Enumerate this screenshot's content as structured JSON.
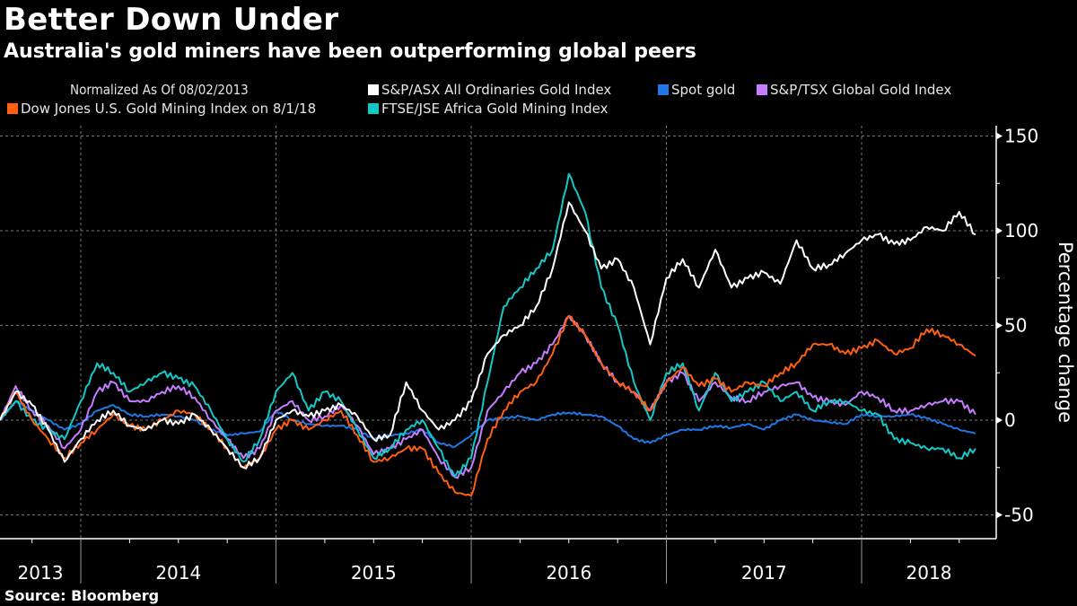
{
  "header": {
    "title": "Better Down Under",
    "subtitle": "Australia's gold miners have been outperforming global peers"
  },
  "footer": {
    "source": "Source: Bloomberg"
  },
  "chart_data": {
    "type": "line",
    "title": "Better Down Under",
    "subtitle": "Australia's gold miners have been outperforming global peers",
    "legend_note": "Normalized As Of 08/02/2013",
    "xlabel": "",
    "ylabel": "Percentage change",
    "ylim": [
      -60,
      150
    ],
    "yticks": [
      150,
      100,
      50,
      0,
      -50
    ],
    "x_tick_labels": [
      "2013",
      "2014",
      "2015",
      "2016",
      "2017",
      "2018"
    ],
    "x_range": [
      "2013-08-02",
      "2018-08-01"
    ],
    "grid": true,
    "legend_placement": "top",
    "x": [
      "2013-08",
      "2013-09",
      "2013-10",
      "2013-11",
      "2013-12",
      "2014-01",
      "2014-02",
      "2014-03",
      "2014-04",
      "2014-05",
      "2014-06",
      "2014-07",
      "2014-08",
      "2014-09",
      "2014-10",
      "2014-11",
      "2014-12",
      "2015-01",
      "2015-02",
      "2015-03",
      "2015-04",
      "2015-05",
      "2015-06",
      "2015-07",
      "2015-08",
      "2015-09",
      "2015-10",
      "2015-11",
      "2015-12",
      "2016-01",
      "2016-02",
      "2016-03",
      "2016-04",
      "2016-05",
      "2016-06",
      "2016-07",
      "2016-08",
      "2016-09",
      "2016-10",
      "2016-11",
      "2016-12",
      "2017-01",
      "2017-02",
      "2017-03",
      "2017-04",
      "2017-05",
      "2017-06",
      "2017-07",
      "2017-08",
      "2017-09",
      "2017-10",
      "2017-11",
      "2017-12",
      "2018-01",
      "2018-02",
      "2018-03",
      "2018-04",
      "2018-05",
      "2018-06",
      "2018-07",
      "2018-08"
    ],
    "series": [
      {
        "name": "S&P/ASX All Ordinaries Gold Index",
        "color": "#ffffff",
        "values": [
          0,
          15,
          8,
          -5,
          -22,
          -10,
          0,
          5,
          -3,
          -5,
          0,
          -2,
          3,
          -5,
          -15,
          -25,
          -20,
          0,
          5,
          2,
          5,
          8,
          2,
          -10,
          -8,
          20,
          5,
          -5,
          0,
          10,
          35,
          45,
          50,
          60,
          80,
          115,
          100,
          80,
          85,
          70,
          40,
          75,
          85,
          70,
          90,
          70,
          75,
          78,
          72,
          95,
          80,
          82,
          88,
          95,
          98,
          93,
          95,
          102,
          100,
          110,
          98
        ]
      },
      {
        "name": "Spot gold",
        "color": "#1f78e6",
        "values": [
          0,
          10,
          5,
          0,
          -5,
          -2,
          5,
          8,
          3,
          2,
          3,
          2,
          0,
          -5,
          -8,
          -7,
          -6,
          5,
          0,
          -2,
          -3,
          -3,
          -5,
          -10,
          -8,
          -7,
          -5,
          -12,
          -14,
          -8,
          0,
          1,
          2,
          0,
          3,
          4,
          3,
          2,
          -3,
          -10,
          -12,
          -8,
          -5,
          -5,
          -3,
          -4,
          -2,
          -5,
          0,
          3,
          0,
          -1,
          -2,
          3,
          2,
          2,
          3,
          1,
          -2,
          -5,
          -7
        ]
      },
      {
        "name": "S&P/TSX Global Gold Index",
        "color": "#c77dff",
        "values": [
          0,
          18,
          5,
          -3,
          -15,
          -5,
          15,
          20,
          10,
          10,
          15,
          18,
          12,
          0,
          -10,
          -20,
          -15,
          5,
          10,
          0,
          2,
          8,
          -3,
          -18,
          -15,
          -10,
          -5,
          -20,
          -30,
          -25,
          5,
          15,
          25,
          30,
          40,
          55,
          45,
          30,
          20,
          15,
          5,
          20,
          25,
          10,
          20,
          12,
          10,
          15,
          18,
          20,
          12,
          10,
          8,
          15,
          12,
          5,
          5,
          8,
          10,
          10,
          3
        ]
      },
      {
        "name": "Dow Jones U.S. Gold Mining Index on 8/1/18",
        "color": "#ff5f0f",
        "values": [
          0,
          15,
          0,
          -10,
          -20,
          -12,
          -5,
          3,
          -3,
          -5,
          0,
          5,
          3,
          -5,
          -15,
          -25,
          -20,
          -5,
          0,
          -5,
          0,
          5,
          -8,
          -22,
          -20,
          -15,
          -15,
          -28,
          -38,
          -40,
          -10,
          5,
          15,
          20,
          35,
          55,
          45,
          30,
          20,
          15,
          5,
          20,
          28,
          18,
          22,
          15,
          20,
          18,
          25,
          30,
          40,
          40,
          35,
          38,
          42,
          35,
          38,
          48,
          45,
          40,
          34
        ]
      },
      {
        "name": "FTSE/JSE Africa Gold Mining Index",
        "color": "#14c8c8",
        "values": [
          0,
          10,
          0,
          -5,
          -10,
          10,
          30,
          25,
          15,
          20,
          25,
          22,
          18,
          5,
          -10,
          -22,
          -10,
          15,
          25,
          5,
          15,
          10,
          -5,
          -20,
          -15,
          -5,
          0,
          -15,
          -30,
          -20,
          20,
          60,
          70,
          80,
          90,
          130,
          110,
          70,
          50,
          20,
          0,
          25,
          30,
          5,
          25,
          10,
          15,
          20,
          10,
          15,
          5,
          10,
          10,
          5,
          3,
          -10,
          -12,
          -15,
          -15,
          -20,
          -15
        ]
      }
    ]
  }
}
